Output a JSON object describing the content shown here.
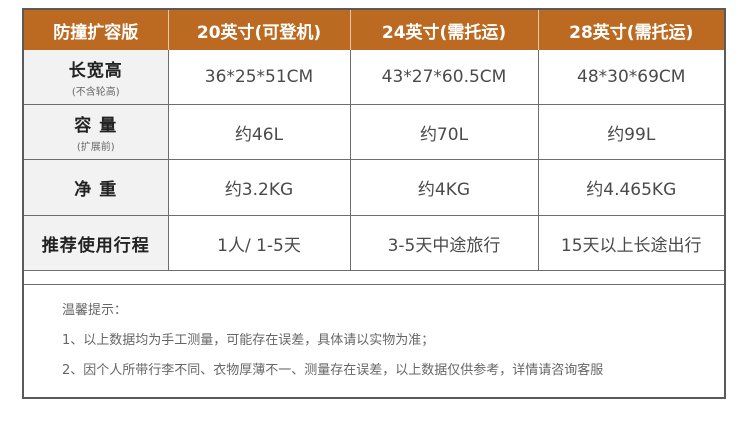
{
  "header": {
    "col0": "防撞扩容版",
    "col1": "20英寸(可登机)",
    "col2": "24英寸(需托运)",
    "col3": "28英寸(需托运)"
  },
  "rows": [
    {
      "label": "长宽高",
      "sublabel": "(不含轮高)",
      "values": [
        "36*25*51CM",
        "43*27*60.5CM",
        "48*30*69CM"
      ]
    },
    {
      "label": "容 量",
      "sublabel": "(扩展前)",
      "values": [
        "约46L",
        "约70L",
        "约99L"
      ]
    },
    {
      "label": "净 重",
      "sublabel": "",
      "values": [
        "约3.2KG",
        "约4KG",
        "约4.465KG"
      ]
    },
    {
      "label": "推荐使用行程",
      "sublabel": "",
      "values": [
        "1人/ 1-5天",
        "3-5天中途旅行",
        "15天以上长途出行"
      ]
    }
  ],
  "notes": {
    "title": "温馨提示：",
    "line1": "1、以上数据均为手工测量，可能存在误差，具体请以实物为准；",
    "line2": "2、因个人所带行李不同、衣物厚薄不一、测量存在误差，以上数据仅供参考，详情请咨询客服"
  },
  "colors": {
    "header_bg": "#bc6a22",
    "label_bg": "#f2f2f2",
    "border": "#6e6e6e"
  }
}
